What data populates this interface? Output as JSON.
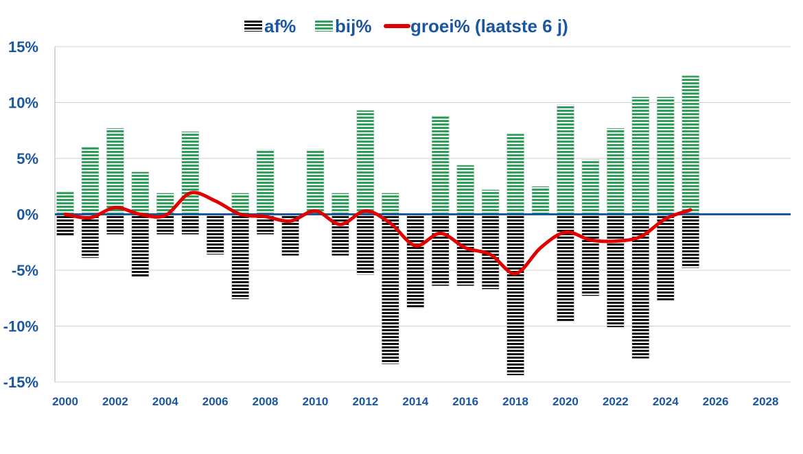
{
  "colors": {
    "bij": "#2ea05a",
    "af": "#111111",
    "groei": "#e00000",
    "text": "#1b56a0",
    "zero": "#1b56a0"
  },
  "chart_data": {
    "type": "bar",
    "title": "",
    "xlabel": "",
    "ylabel": "",
    "ylim": [
      -15,
      15
    ],
    "xlim": [
      2000,
      2029
    ],
    "y_ticks": [
      "15%",
      "10%",
      "5%",
      "0%",
      "-5%",
      "-10%",
      "-15%"
    ],
    "y_tick_values": [
      15,
      10,
      5,
      0,
      -5,
      -10,
      -15
    ],
    "x_ticks": [
      "2000",
      "2002",
      "2004",
      "2006",
      "2008",
      "2010",
      "2012",
      "2014",
      "2016",
      "2018",
      "2020",
      "2022",
      "2024",
      "2026",
      "2028"
    ],
    "x_tick_values": [
      2000,
      2002,
      2004,
      2006,
      2008,
      2010,
      2012,
      2014,
      2016,
      2018,
      2020,
      2022,
      2024,
      2026,
      2028
    ],
    "grid": true,
    "legend_position": "top-center",
    "x": [
      2000,
      2001,
      2002,
      2003,
      2004,
      2005,
      2006,
      2007,
      2008,
      2009,
      2010,
      2011,
      2012,
      2013,
      2014,
      2015,
      2016,
      2017,
      2018,
      2019,
      2020,
      2021,
      2022,
      2023,
      2024,
      2025
    ],
    "series": [
      {
        "name": "af%",
        "type": "bar",
        "pattern": "horizontal-stripes",
        "values": [
          -1.9,
          -3.9,
          -1.8,
          -5.6,
          -1.8,
          -1.8,
          -3.6,
          -7.6,
          -1.8,
          -3.7,
          0,
          -3.7,
          -5.4,
          -13.4,
          -8.4,
          -6.4,
          -6.4,
          -6.7,
          -14.4,
          0,
          -9.6,
          -7.3,
          -10.1,
          -12.9,
          -7.7,
          -4.8
        ]
      },
      {
        "name": "bij%",
        "type": "bar",
        "pattern": "horizontal-stripes",
        "values": [
          2.0,
          6.0,
          7.7,
          3.8,
          1.9,
          7.4,
          0,
          1.9,
          5.8,
          0,
          5.8,
          1.9,
          9.3,
          1.9,
          0,
          8.8,
          4.4,
          2.2,
          7.2,
          2.5,
          9.8,
          4.9,
          7.7,
          10.5,
          10.5,
          12.4
        ]
      },
      {
        "name": "groei% (laatste 6 j)",
        "type": "line",
        "values": [
          0.0,
          -0.3,
          0.6,
          0.0,
          -0.1,
          1.9,
          1.2,
          0.0,
          -0.2,
          -0.6,
          0.3,
          -0.9,
          0.3,
          -0.8,
          -2.8,
          -1.7,
          -3.0,
          -3.6,
          -5.3,
          -3.0,
          -1.6,
          -2.3,
          -2.4,
          -2.0,
          -0.4,
          0.4
        ]
      }
    ]
  }
}
